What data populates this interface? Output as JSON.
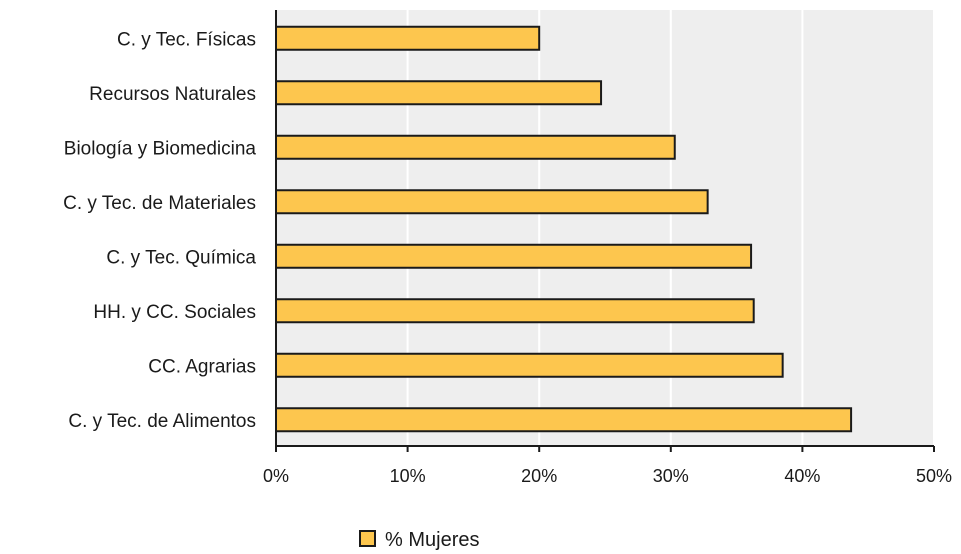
{
  "chart_data": {
    "type": "bar",
    "orientation": "horizontal",
    "categories": [
      "C. y Tec. Físicas",
      "Recursos Naturales",
      "Biología y Biomedicina",
      "C. y Tec. de Materiales",
      "C. y Tec. Química",
      "HH. y CC. Sociales",
      "CC. Agrarias",
      "C. y Tec. de Alimentos"
    ],
    "series": [
      {
        "name": "% Mujeres",
        "values": [
          20.0,
          24.7,
          30.3,
          32.8,
          36.1,
          36.3,
          38.5,
          43.7
        ]
      }
    ],
    "xlim": [
      0,
      50
    ],
    "xticks": [
      "0%",
      "10%",
      "20%",
      "30%",
      "40%",
      "50%"
    ],
    "title": "",
    "xlabel": "",
    "ylabel": "",
    "grid": true,
    "legend_position": "bottom-center",
    "colors": {
      "bar_fill": "#FDC64E",
      "bar_stroke": "#1a1a1a",
      "plot_bg": "#EEEEEE",
      "grid": "#FFFFFF"
    }
  }
}
